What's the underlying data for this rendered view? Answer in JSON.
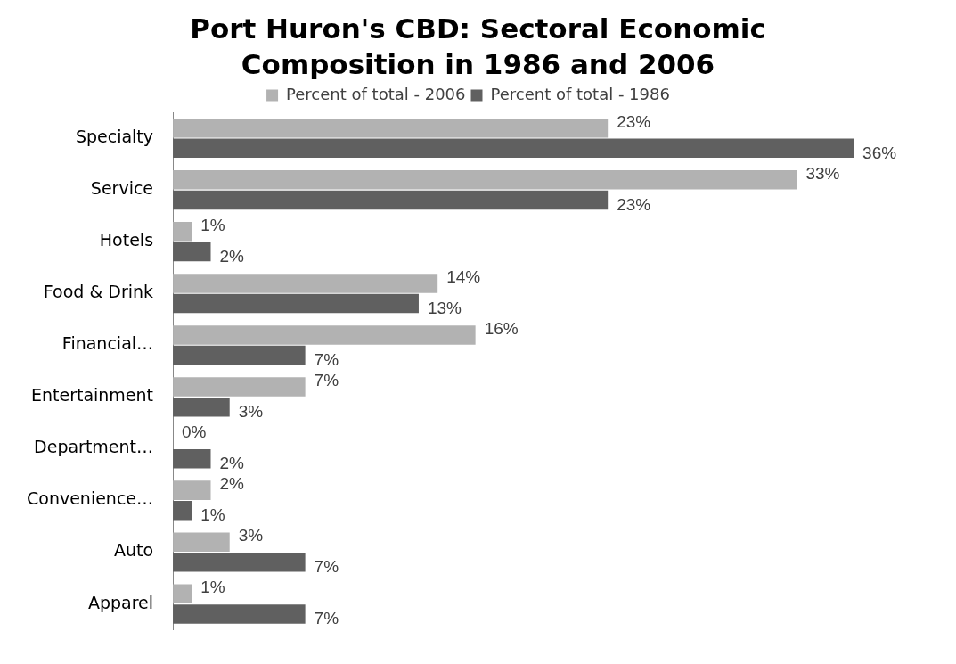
{
  "chart_data": {
    "type": "bar",
    "orientation": "horizontal",
    "title": "Port Huron's CBD: Sectoral Economic Composition in 1986 and 2006",
    "categories": [
      "Specialty",
      "Service",
      "Hotels",
      "Food & Drink",
      "Financial…",
      "Entertainment",
      "Department…",
      "Convenience…",
      "Auto",
      "Apparel"
    ],
    "series": [
      {
        "name": "Percent of total - 2006",
        "color": "#b2b2b2",
        "values": [
          23,
          33,
          1,
          14,
          16,
          7,
          0,
          2,
          3,
          1
        ],
        "value_labels": [
          "23%",
          "33%",
          "1%",
          "14%",
          "16%",
          "7%",
          "0%",
          "2%",
          "3%",
          "1%"
        ]
      },
      {
        "name": "Percent of total - 1986",
        "color": "#606060",
        "values": [
          36,
          23,
          2,
          13,
          7,
          3,
          2,
          1,
          7,
          7
        ],
        "value_labels": [
          "36%",
          "23%",
          "2%",
          "13%",
          "7%",
          "3%",
          "2%",
          "1%",
          "7%",
          "7%"
        ]
      }
    ],
    "legend": "top",
    "grid": false
  }
}
